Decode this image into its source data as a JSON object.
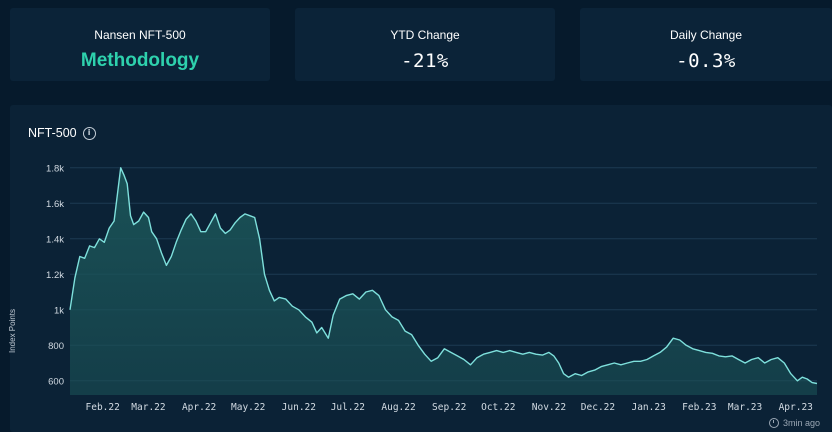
{
  "cards": {
    "index": {
      "label": "Nansen NFT-500",
      "value": "Methodology"
    },
    "ytd": {
      "label": "YTD Change",
      "value": "-21%"
    },
    "daily": {
      "label": "Daily Change",
      "value": "-0.3%"
    }
  },
  "panel": {
    "title": "NFT-500",
    "info_icon": "info-icon",
    "updated": "3min ago",
    "clock_icon": "clock-icon"
  },
  "colors": {
    "background": "#061a2c",
    "card": "#0b2338",
    "accent": "#2ed1ad",
    "line": "#7ee0dc",
    "fill": "#1b5458"
  },
  "chart_data": {
    "type": "area",
    "title": "NFT-500",
    "ylabel": "Index Points",
    "xlabel": "",
    "y_ticks": [
      600,
      800,
      1000,
      1200,
      1400,
      1600,
      1800
    ],
    "y_tick_labels": [
      "600",
      "800",
      "1k",
      "1.2k",
      "1.4k",
      "1.6k",
      "1.8k"
    ],
    "ylim": [
      520,
      1900
    ],
    "x_ticks": [
      "Feb.22",
      "Mar.22",
      "Apr.22",
      "May.22",
      "Jun.22",
      "Jul.22",
      "Aug.22",
      "Sep.22",
      "Oct.22",
      "Nov.22",
      "Dec.22",
      "Jan.23",
      "Feb.23",
      "Mar.23",
      "Apr.23"
    ],
    "xlim": [
      "2022-01-12",
      "2023-04-14"
    ],
    "grid": true,
    "series": [
      {
        "points": [
          [
            "2022-01-12",
            1000
          ],
          [
            "2022-01-15",
            1180
          ],
          [
            "2022-01-18",
            1300
          ],
          [
            "2022-01-21",
            1290
          ],
          [
            "2022-01-24",
            1360
          ],
          [
            "2022-01-27",
            1350
          ],
          [
            "2022-01-30",
            1400
          ],
          [
            "2022-02-02",
            1380
          ],
          [
            "2022-02-05",
            1460
          ],
          [
            "2022-02-08",
            1500
          ],
          [
            "2022-02-10",
            1650
          ],
          [
            "2022-02-12",
            1800
          ],
          [
            "2022-02-14",
            1760
          ],
          [
            "2022-02-16",
            1710
          ],
          [
            "2022-02-18",
            1530
          ],
          [
            "2022-02-20",
            1480
          ],
          [
            "2022-02-23",
            1500
          ],
          [
            "2022-02-26",
            1550
          ],
          [
            "2022-03-01",
            1520
          ],
          [
            "2022-03-03",
            1440
          ],
          [
            "2022-03-06",
            1400
          ],
          [
            "2022-03-09",
            1320
          ],
          [
            "2022-03-12",
            1250
          ],
          [
            "2022-03-15",
            1300
          ],
          [
            "2022-03-18",
            1380
          ],
          [
            "2022-03-21",
            1450
          ],
          [
            "2022-03-24",
            1510
          ],
          [
            "2022-03-27",
            1540
          ],
          [
            "2022-03-30",
            1500
          ],
          [
            "2022-04-02",
            1440
          ],
          [
            "2022-04-05",
            1440
          ],
          [
            "2022-04-08",
            1490
          ],
          [
            "2022-04-11",
            1540
          ],
          [
            "2022-04-14",
            1460
          ],
          [
            "2022-04-17",
            1430
          ],
          [
            "2022-04-20",
            1450
          ],
          [
            "2022-04-23",
            1490
          ],
          [
            "2022-04-26",
            1520
          ],
          [
            "2022-04-29",
            1540
          ],
          [
            "2022-05-02",
            1530
          ],
          [
            "2022-05-05",
            1520
          ],
          [
            "2022-05-08",
            1400
          ],
          [
            "2022-05-11",
            1200
          ],
          [
            "2022-05-14",
            1110
          ],
          [
            "2022-05-17",
            1050
          ],
          [
            "2022-05-20",
            1070
          ],
          [
            "2022-05-24",
            1060
          ],
          [
            "2022-05-28",
            1020
          ],
          [
            "2022-06-01",
            1000
          ],
          [
            "2022-06-05",
            960
          ],
          [
            "2022-06-09",
            930
          ],
          [
            "2022-06-12",
            870
          ],
          [
            "2022-06-15",
            900
          ],
          [
            "2022-06-19",
            840
          ],
          [
            "2022-06-22",
            970
          ],
          [
            "2022-06-26",
            1060
          ],
          [
            "2022-06-30",
            1080
          ],
          [
            "2022-07-04",
            1090
          ],
          [
            "2022-07-08",
            1060
          ],
          [
            "2022-07-12",
            1100
          ],
          [
            "2022-07-16",
            1110
          ],
          [
            "2022-07-20",
            1080
          ],
          [
            "2022-07-24",
            1000
          ],
          [
            "2022-07-28",
            960
          ],
          [
            "2022-08-01",
            940
          ],
          [
            "2022-08-05",
            880
          ],
          [
            "2022-08-09",
            860
          ],
          [
            "2022-08-13",
            800
          ],
          [
            "2022-08-17",
            750
          ],
          [
            "2022-08-21",
            710
          ],
          [
            "2022-08-25",
            730
          ],
          [
            "2022-08-29",
            780
          ],
          [
            "2022-09-02",
            760
          ],
          [
            "2022-09-06",
            740
          ],
          [
            "2022-09-10",
            720
          ],
          [
            "2022-09-14",
            690
          ],
          [
            "2022-09-18",
            730
          ],
          [
            "2022-09-22",
            750
          ],
          [
            "2022-09-26",
            760
          ],
          [
            "2022-09-30",
            770
          ],
          [
            "2022-10-04",
            760
          ],
          [
            "2022-10-08",
            770
          ],
          [
            "2022-10-12",
            760
          ],
          [
            "2022-10-16",
            750
          ],
          [
            "2022-10-20",
            760
          ],
          [
            "2022-10-24",
            750
          ],
          [
            "2022-10-28",
            745
          ],
          [
            "2022-11-01",
            760
          ],
          [
            "2022-11-04",
            740
          ],
          [
            "2022-11-07",
            700
          ],
          [
            "2022-11-10",
            640
          ],
          [
            "2022-11-13",
            620
          ],
          [
            "2022-11-17",
            640
          ],
          [
            "2022-11-21",
            630
          ],
          [
            "2022-11-25",
            650
          ],
          [
            "2022-11-29",
            660
          ],
          [
            "2022-12-03",
            680
          ],
          [
            "2022-12-07",
            690
          ],
          [
            "2022-12-11",
            700
          ],
          [
            "2022-12-15",
            690
          ],
          [
            "2022-12-19",
            700
          ],
          [
            "2022-12-23",
            710
          ],
          [
            "2022-12-27",
            710
          ],
          [
            "2022-12-31",
            720
          ],
          [
            "2023-01-04",
            740
          ],
          [
            "2023-01-08",
            760
          ],
          [
            "2023-01-12",
            790
          ],
          [
            "2023-01-16",
            840
          ],
          [
            "2023-01-20",
            830
          ],
          [
            "2023-01-24",
            800
          ],
          [
            "2023-01-28",
            780
          ],
          [
            "2023-02-01",
            770
          ],
          [
            "2023-02-05",
            760
          ],
          [
            "2023-02-09",
            755
          ],
          [
            "2023-02-13",
            740
          ],
          [
            "2023-02-17",
            735
          ],
          [
            "2023-02-21",
            740
          ],
          [
            "2023-02-25",
            720
          ],
          [
            "2023-03-01",
            700
          ],
          [
            "2023-03-05",
            720
          ],
          [
            "2023-03-09",
            730
          ],
          [
            "2023-03-13",
            700
          ],
          [
            "2023-03-17",
            720
          ],
          [
            "2023-03-21",
            730
          ],
          [
            "2023-03-25",
            700
          ],
          [
            "2023-03-29",
            640
          ],
          [
            "2023-04-02",
            600
          ],
          [
            "2023-04-05",
            620
          ],
          [
            "2023-04-08",
            610
          ],
          [
            "2023-04-11",
            590
          ],
          [
            "2023-04-14",
            585
          ]
        ]
      }
    ]
  }
}
